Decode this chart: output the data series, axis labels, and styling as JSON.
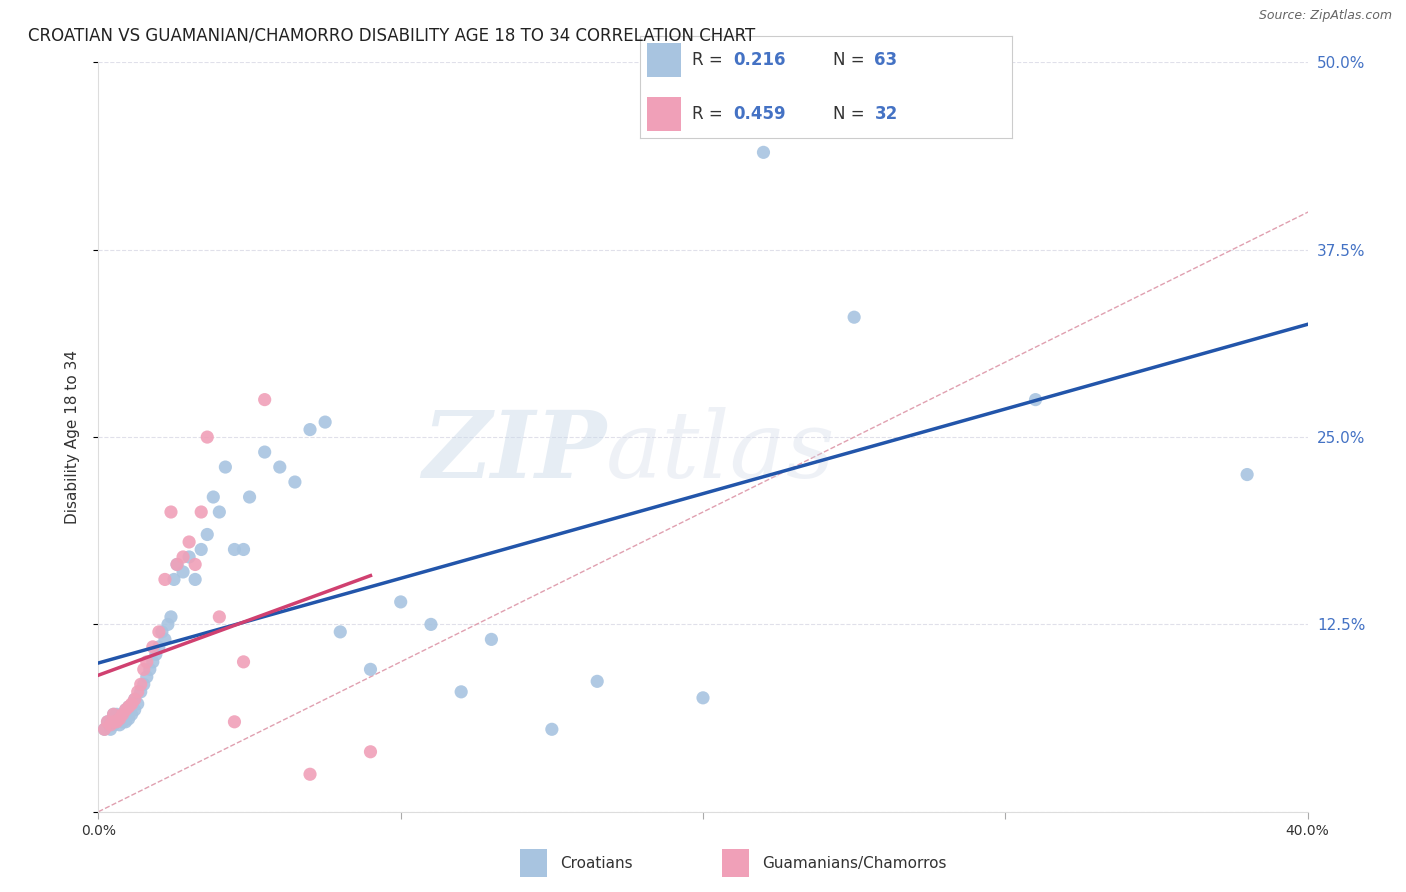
{
  "title": "CROATIAN VS GUAMANIAN/CHAMORRO DISABILITY AGE 18 TO 34 CORRELATION CHART",
  "source": "Source: ZipAtlas.com",
  "ylabel": "Disability Age 18 to 34",
  "xlim": [
    0.0,
    0.4
  ],
  "ylim": [
    0.0,
    0.5
  ],
  "xticks": [
    0.0,
    0.1,
    0.2,
    0.3,
    0.4
  ],
  "xticklabels": [
    "0.0%",
    "",
    "",
    "",
    "40.0%"
  ],
  "yticks": [
    0.0,
    0.125,
    0.25,
    0.375,
    0.5
  ],
  "yticklabels": [
    "",
    "12.5%",
    "25.0%",
    "37.5%",
    "50.0%"
  ],
  "croatian_R": 0.216,
  "croatian_N": 63,
  "guamanian_R": 0.459,
  "guamanian_N": 32,
  "croatian_color": "#a8c4e0",
  "guamanian_color": "#f0a0b8",
  "croatian_line_color": "#2255aa",
  "guamanian_line_color": "#d04070",
  "diagonal_color": "#e0a0b0",
  "watermark_zip": "ZIP",
  "watermark_atlas": "atlas",
  "bg_color": "#ffffff",
  "legend_text_color": "#4472c4",
  "grid_color": "#e0e0ea",
  "croatian_points_x": [
    0.002,
    0.003,
    0.004,
    0.004,
    0.005,
    0.005,
    0.005,
    0.006,
    0.006,
    0.007,
    0.007,
    0.008,
    0.008,
    0.009,
    0.009,
    0.01,
    0.01,
    0.011,
    0.012,
    0.012,
    0.013,
    0.014,
    0.015,
    0.016,
    0.017,
    0.018,
    0.019,
    0.02,
    0.021,
    0.022,
    0.023,
    0.024,
    0.025,
    0.026,
    0.028,
    0.03,
    0.032,
    0.034,
    0.036,
    0.038,
    0.04,
    0.042,
    0.045,
    0.048,
    0.05,
    0.055,
    0.06,
    0.065,
    0.07,
    0.075,
    0.08,
    0.09,
    0.1,
    0.11,
    0.12,
    0.13,
    0.15,
    0.165,
    0.2,
    0.22,
    0.25,
    0.31,
    0.38
  ],
  "croatian_points_y": [
    0.055,
    0.06,
    0.055,
    0.06,
    0.058,
    0.062,
    0.065,
    0.06,
    0.065,
    0.058,
    0.062,
    0.06,
    0.065,
    0.06,
    0.068,
    0.062,
    0.07,
    0.065,
    0.068,
    0.075,
    0.072,
    0.08,
    0.085,
    0.09,
    0.095,
    0.1,
    0.105,
    0.11,
    0.12,
    0.115,
    0.125,
    0.13,
    0.155,
    0.165,
    0.16,
    0.17,
    0.155,
    0.175,
    0.185,
    0.21,
    0.2,
    0.23,
    0.175,
    0.175,
    0.21,
    0.24,
    0.23,
    0.22,
    0.255,
    0.26,
    0.12,
    0.095,
    0.14,
    0.125,
    0.08,
    0.115,
    0.055,
    0.087,
    0.076,
    0.44,
    0.33,
    0.275,
    0.225
  ],
  "guamanian_points_x": [
    0.002,
    0.003,
    0.004,
    0.005,
    0.005,
    0.006,
    0.007,
    0.008,
    0.009,
    0.01,
    0.011,
    0.012,
    0.013,
    0.014,
    0.015,
    0.016,
    0.018,
    0.02,
    0.022,
    0.024,
    0.026,
    0.028,
    0.03,
    0.032,
    0.034,
    0.036,
    0.04,
    0.045,
    0.048,
    0.055,
    0.07,
    0.09
  ],
  "guamanian_points_y": [
    0.055,
    0.06,
    0.058,
    0.06,
    0.065,
    0.06,
    0.062,
    0.065,
    0.068,
    0.07,
    0.072,
    0.075,
    0.08,
    0.085,
    0.095,
    0.1,
    0.11,
    0.12,
    0.155,
    0.2,
    0.165,
    0.17,
    0.18,
    0.165,
    0.2,
    0.25,
    0.13,
    0.06,
    0.1,
    0.275,
    0.025,
    0.04
  ]
}
